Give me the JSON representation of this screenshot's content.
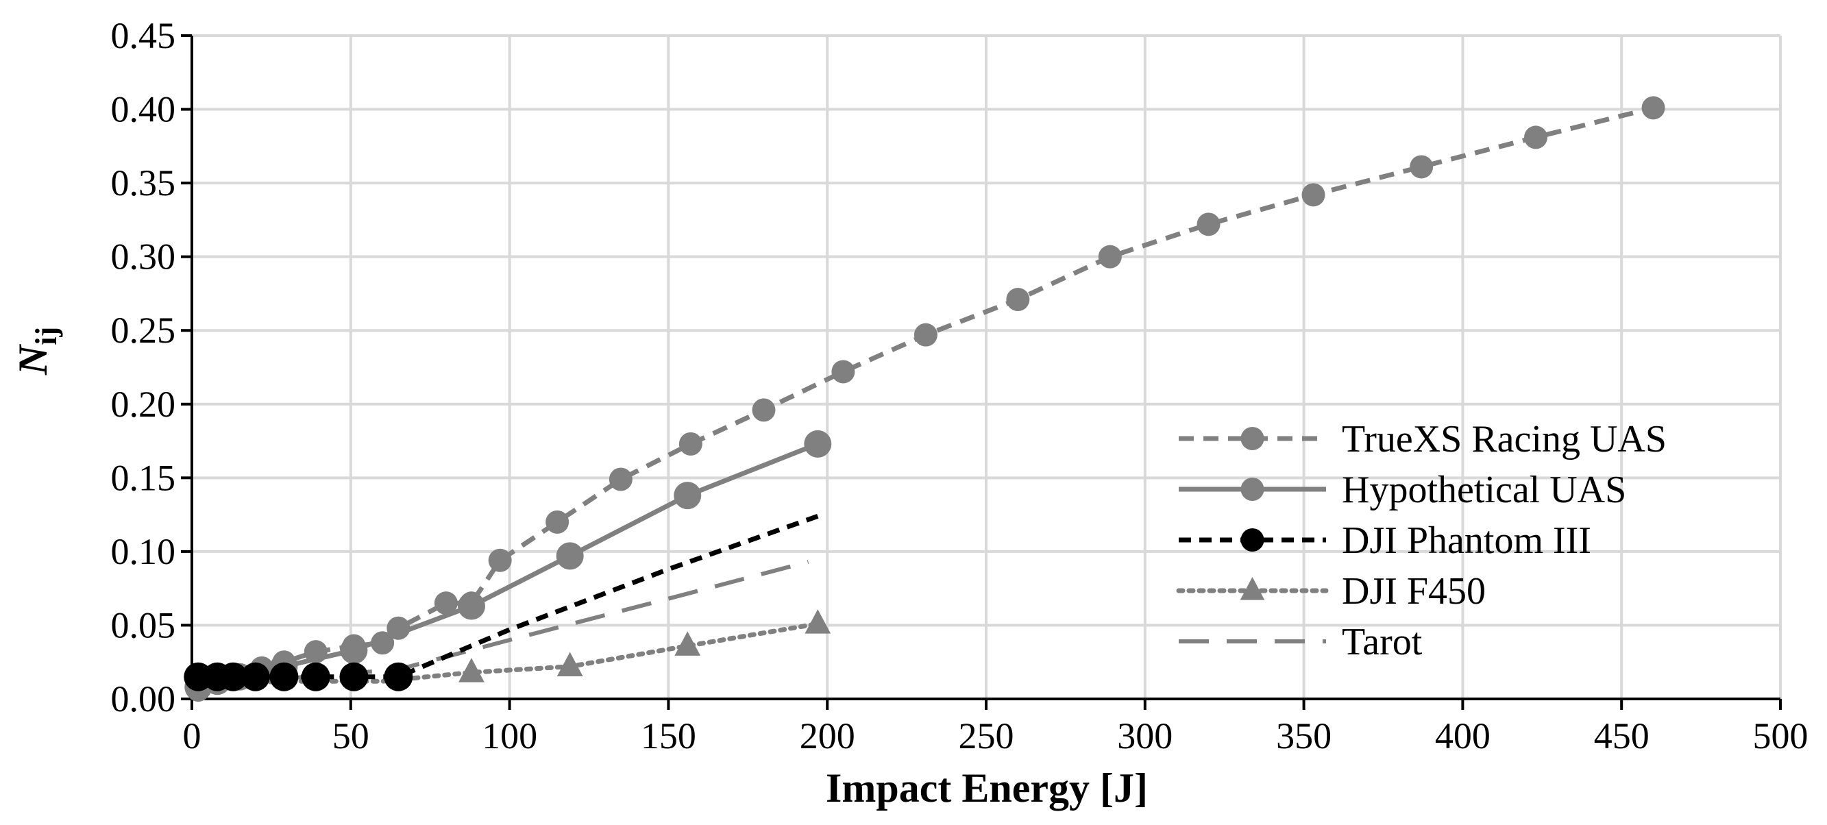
{
  "chart_data": {
    "type": "line",
    "title": "",
    "xlabel": "Impact Energy [J]",
    "ylabel": "N",
    "ylabel_subscript": "ij",
    "xlim": [
      0,
      500
    ],
    "ylim": [
      0,
      0.45
    ],
    "x_ticks": [
      "0",
      "50",
      "100",
      "150",
      "200",
      "250",
      "300",
      "350",
      "400",
      "450",
      "500"
    ],
    "y_ticks": [
      "0.00",
      "0.05",
      "0.10",
      "0.15",
      "0.20",
      "0.25",
      "0.30",
      "0.35",
      "0.40",
      "0.45"
    ],
    "grid": true,
    "legend_position": "bottom-right",
    "series": [
      {
        "name": "TrueXS Racing UAS",
        "style": "dashed",
        "marker": "circle",
        "color": "#808080",
        "x": [
          2,
          8,
          15,
          22,
          29,
          39,
          51,
          60,
          65,
          80,
          88,
          97,
          115,
          135,
          157,
          180,
          205,
          231,
          260,
          289,
          320,
          353,
          387,
          423,
          460
        ],
        "y": [
          0.006,
          0.012,
          0.016,
          0.021,
          0.025,
          0.032,
          0.036,
          0.038,
          0.048,
          0.065,
          0.065,
          0.094,
          0.12,
          0.149,
          0.173,
          0.196,
          0.222,
          0.247,
          0.271,
          0.3,
          0.322,
          0.342,
          0.361,
          0.381,
          0.401
        ]
      },
      {
        "name": "Hypothetical UAS",
        "style": "solid",
        "marker": "circle",
        "color": "#808080",
        "x": [
          2,
          8,
          15,
          29,
          51,
          88,
          119,
          156,
          197
        ],
        "y": [
          0.008,
          0.012,
          0.015,
          0.022,
          0.033,
          0.063,
          0.097,
          0.138,
          0.173
        ]
      },
      {
        "name": "DJI Phantom III",
        "style": "short-dash",
        "marker": "circle",
        "color": "#000000",
        "x": [
          2,
          8,
          13,
          20,
          29,
          39,
          51,
          65,
          100,
          150,
          197
        ],
        "y": [
          0.015,
          0.015,
          0.015,
          0.015,
          0.015,
          0.015,
          0.015,
          0.015,
          0.047,
          0.088,
          0.124
        ]
      },
      {
        "name": "DJI F450",
        "style": "dotted",
        "marker": "triangle",
        "color": "#808080",
        "x": [
          2,
          30,
          60,
          88,
          119,
          156,
          197
        ],
        "y": [
          0.01,
          0.012,
          0.012,
          0.018,
          0.022,
          0.036,
          0.051
        ]
      },
      {
        "name": "Tarot",
        "style": "long-dash",
        "marker": "none",
        "color": "#808080",
        "x": [
          2,
          30,
          65,
          100,
          150,
          194
        ],
        "y": [
          0.012,
          0.014,
          0.02,
          0.04,
          0.068,
          0.093
        ]
      }
    ]
  }
}
